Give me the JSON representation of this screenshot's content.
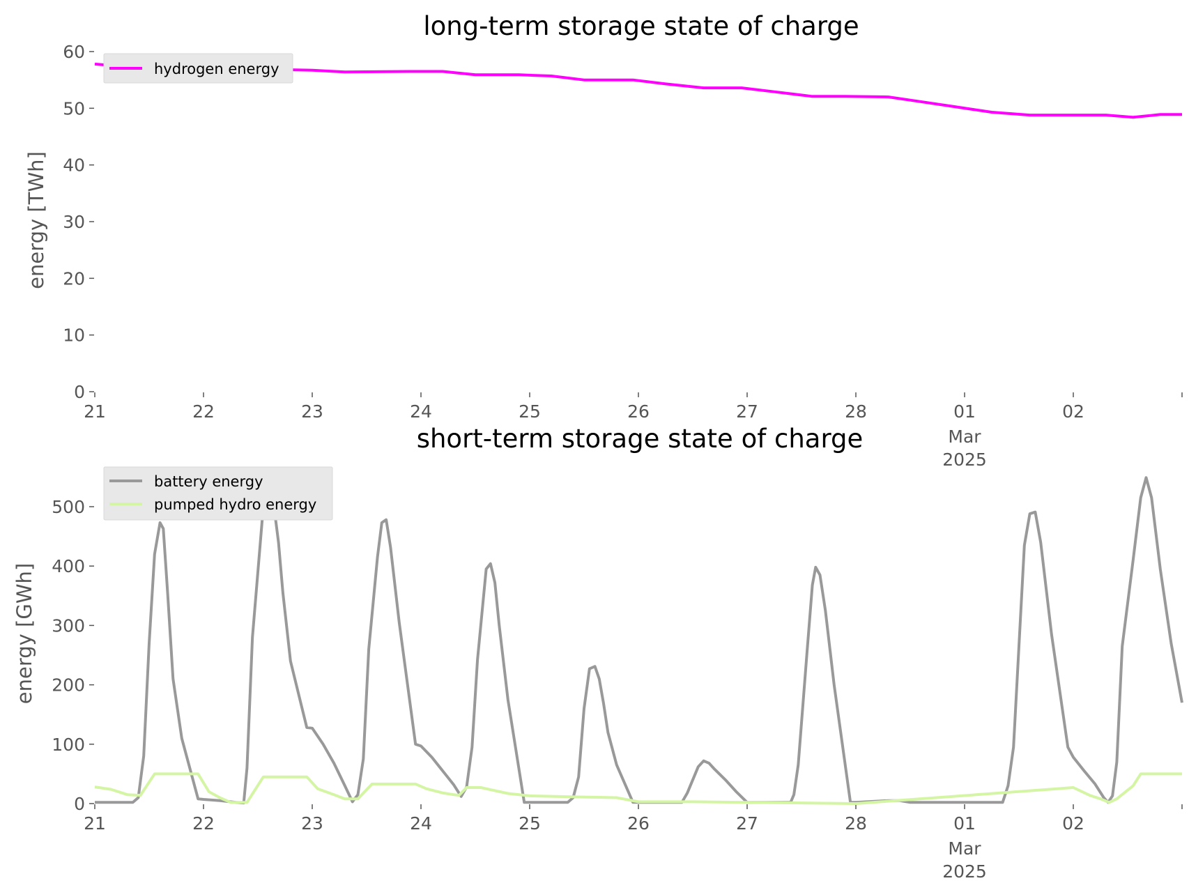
{
  "chart_data": [
    {
      "type": "line",
      "title": "long-term storage state of charge",
      "xlabel": "",
      "ylabel": "energy [TWh]",
      "ylim": [
        0,
        60
      ],
      "yticks": [
        0,
        10,
        20,
        30,
        40,
        50,
        60
      ],
      "xlim": [
        0,
        10
      ],
      "xticks": [
        {
          "day": 0,
          "label": "21"
        },
        {
          "day": 1,
          "label": "22"
        },
        {
          "day": 2,
          "label": "23"
        },
        {
          "day": 3,
          "label": "24"
        },
        {
          "day": 4,
          "label": "25"
        },
        {
          "day": 5,
          "label": "26"
        },
        {
          "day": 6,
          "label": "27"
        },
        {
          "day": 7,
          "label": "28"
        },
        {
          "day": 8,
          "label": "01",
          "sub": [
            "Mar",
            "2025"
          ]
        },
        {
          "day": 9,
          "label": "02"
        }
      ],
      "grid": false,
      "legend": "upper-left",
      "series": [
        {
          "name": "hydrogen energy",
          "color": "#ff00ff",
          "x": [
            0,
            0.3,
            0.7,
            1.0,
            1.5,
            2.0,
            2.3,
            2.9,
            3.2,
            3.5,
            3.9,
            4.2,
            4.5,
            4.95,
            5.25,
            5.6,
            5.95,
            6.25,
            6.6,
            6.9,
            7.3,
            7.55,
            7.9,
            8.25,
            8.6,
            9.0,
            9.3,
            9.55,
            9.8,
            10.0
          ],
          "y": [
            57.8,
            57.3,
            57.2,
            57.0,
            56.9,
            56.7,
            56.4,
            56.5,
            56.5,
            55.9,
            55.9,
            55.7,
            55.0,
            55.0,
            54.3,
            53.6,
            53.6,
            52.9,
            52.1,
            52.1,
            52.0,
            51.3,
            50.3,
            49.3,
            48.8,
            48.8,
            48.8,
            48.4,
            48.9,
            48.9
          ]
        }
      ]
    },
    {
      "type": "line",
      "title": "short-term storage state of charge",
      "xlabel": "",
      "ylabel": "energy [GWh]",
      "ylim": [
        0,
        550
      ],
      "yticks": [
        0,
        100,
        200,
        300,
        400,
        500
      ],
      "xlim": [
        0,
        10
      ],
      "xticks": [
        {
          "day": 0,
          "label": "21"
        },
        {
          "day": 1,
          "label": "22"
        },
        {
          "day": 2,
          "label": "23"
        },
        {
          "day": 3,
          "label": "24"
        },
        {
          "day": 4,
          "label": "25"
        },
        {
          "day": 5,
          "label": "26"
        },
        {
          "day": 6,
          "label": "27"
        },
        {
          "day": 7,
          "label": "28"
        },
        {
          "day": 8,
          "label": "01",
          "sub": [
            "Mar",
            "2025"
          ]
        },
        {
          "day": 9,
          "label": "02"
        }
      ],
      "grid": false,
      "legend": "upper-left",
      "series": [
        {
          "name": "battery energy",
          "color": "#999999",
          "x": [
            0,
            0.35,
            0.4,
            0.45,
            0.5,
            0.55,
            0.6,
            0.63,
            0.67,
            0.72,
            0.8,
            0.95,
            1.0,
            1.15,
            1.3,
            1.37,
            1.4,
            1.45,
            1.55,
            1.6,
            1.64,
            1.69,
            1.73,
            1.8,
            1.95,
            2.0,
            2.1,
            2.2,
            2.3,
            2.37,
            2.42,
            2.47,
            2.52,
            2.6,
            2.64,
            2.68,
            2.72,
            2.8,
            2.95,
            3.0,
            3.1,
            3.2,
            3.3,
            3.37,
            3.42,
            3.47,
            3.52,
            3.6,
            3.64,
            3.68,
            3.72,
            3.8,
            3.95,
            4.0,
            4.35,
            4.4,
            4.45,
            4.5,
            4.55,
            4.6,
            4.64,
            4.68,
            4.72,
            4.8,
            4.95,
            5.0,
            5.4,
            5.45,
            5.55,
            5.6,
            5.65,
            5.7,
            5.8,
            5.9,
            6.0,
            6.4,
            6.43,
            6.47,
            6.55,
            6.6,
            6.63,
            6.67,
            6.72,
            6.8,
            6.95,
            7.0,
            7.1,
            7.3,
            7.4,
            7.5,
            8.0,
            8.35,
            8.4,
            8.45,
            8.5,
            8.55,
            8.6,
            8.65,
            8.7,
            8.8,
            8.95,
            9.0,
            9.1,
            9.2,
            9.28,
            9.32,
            9.36,
            9.4,
            9.45,
            9.55,
            9.62,
            9.67,
            9.72,
            9.8,
            9.9,
            10.0
          ],
          "y": [
            2,
            2,
            10,
            80,
            270,
            420,
            473,
            463,
            355,
            210,
            110,
            8,
            7,
            5,
            2,
            1,
            60,
            280,
            500,
            528,
            512,
            440,
            355,
            240,
            128,
            127,
            100,
            68,
            30,
            3,
            15,
            75,
            260,
            415,
            473,
            478,
            432,
            305,
            100,
            97,
            78,
            55,
            32,
            12,
            28,
            95,
            242,
            395,
            404,
            372,
            300,
            175,
            2,
            2,
            2,
            10,
            45,
            160,
            227,
            231,
            210,
            168,
            120,
            65,
            2,
            2,
            2,
            18,
            62,
            72,
            68,
            58,
            40,
            20,
            2,
            2,
            15,
            65,
            253,
            368,
            398,
            385,
            325,
            200,
            2,
            2,
            3,
            5,
            5,
            2,
            2,
            2,
            30,
            95,
            265,
            435,
            488,
            491,
            440,
            285,
            95,
            78,
            55,
            33,
            10,
            2,
            13,
            70,
            265,
            410,
            515,
            549,
            515,
            395,
            270,
            170
          ]
        },
        {
          "name": "pumped hydro energy",
          "color": "#d4f5a3",
          "x": [
            0,
            0.15,
            0.3,
            0.42,
            0.55,
            0.6,
            0.7,
            0.8,
            0.95,
            1.05,
            1.15,
            1.25,
            1.3,
            1.4,
            1.55,
            1.6,
            1.7,
            1.8,
            1.95,
            2.05,
            2.2,
            2.3,
            2.35,
            2.42,
            2.55,
            2.6,
            2.7,
            2.8,
            2.95,
            3.05,
            3.2,
            3.3,
            3.35,
            3.42,
            3.55,
            3.6,
            3.8,
            4.0,
            4.5,
            4.8,
            5.0,
            5.5,
            6.0,
            6.5,
            7.0,
            9.0,
            9.15,
            9.25,
            9.33,
            9.4,
            9.55,
            9.62,
            10.0
          ],
          "y": [
            28,
            24,
            15,
            14,
            50,
            50,
            50,
            50,
            50,
            20,
            10,
            2,
            2,
            2,
            45,
            45,
            45,
            45,
            45,
            25,
            15,
            8,
            8,
            8,
            33,
            33,
            33,
            33,
            33,
            25,
            18,
            15,
            14,
            27,
            27,
            25,
            17,
            13,
            11,
            10,
            3,
            3,
            2,
            1,
            0,
            27,
            14,
            8,
            2,
            8,
            30,
            50,
            50
          ]
        }
      ]
    }
  ]
}
